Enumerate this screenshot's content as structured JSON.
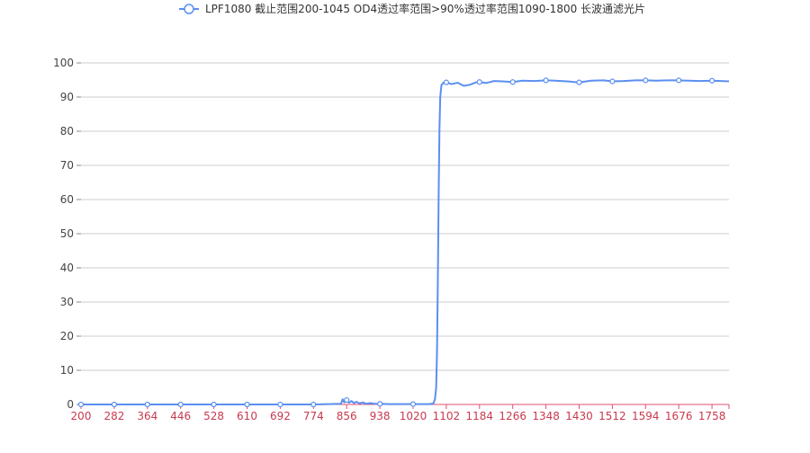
{
  "chart_data": {
    "type": "line",
    "legend": {
      "label": "LPF1080 截止范围200-1045 OD4透过率范围>90%透过率范围1090-1800 长波通滤光片",
      "position": "top-center"
    },
    "xlabel": "",
    "ylabel": "",
    "xlim": [
      200,
      1800
    ],
    "ylim": [
      0,
      100
    ],
    "grid": true,
    "x_ticks": [
      "200",
      "282",
      "364",
      "446",
      "528",
      "610",
      "692",
      "774",
      "856",
      "938",
      "1020",
      "1102",
      "1184",
      "1266",
      "1348",
      "1430",
      "1512",
      "1594",
      "1676",
      "1758"
    ],
    "y_ticks": [
      "0",
      "10",
      "20",
      "30",
      "40",
      "50",
      "60",
      "70",
      "80",
      "90",
      "100"
    ],
    "colors": {
      "line": "#5b8ff0",
      "x_tick_labels": "#c8394f",
      "x_axis": "#e05070",
      "grid": "#cccccc",
      "y_tick_labels": "#444444"
    },
    "series": [
      {
        "name": "LPF1080 截止范围200-1045 OD4透过率范围>90%透过率范围1090-1800 长波通滤光片",
        "points": [
          [
            200,
            0
          ],
          [
            282,
            0
          ],
          [
            364,
            0
          ],
          [
            446,
            0
          ],
          [
            528,
            0
          ],
          [
            610,
            0
          ],
          [
            692,
            0
          ],
          [
            774,
            0
          ],
          [
            810,
            0.1
          ],
          [
            842,
            0.2
          ],
          [
            846,
            1.5
          ],
          [
            850,
            0.6
          ],
          [
            856,
            1.3
          ],
          [
            862,
            0.5
          ],
          [
            868,
            1.0
          ],
          [
            874,
            0.4
          ],
          [
            880,
            0.8
          ],
          [
            888,
            0.3
          ],
          [
            896,
            0.6
          ],
          [
            904,
            0.2
          ],
          [
            915,
            0.4
          ],
          [
            925,
            0.2
          ],
          [
            938,
            0.2
          ],
          [
            960,
            0.1
          ],
          [
            1020,
            0.1
          ],
          [
            1060,
            0.1
          ],
          [
            1070,
            0.3
          ],
          [
            1074,
            1.5
          ],
          [
            1077,
            5
          ],
          [
            1079,
            15
          ],
          [
            1081,
            35
          ],
          [
            1083,
            60
          ],
          [
            1085,
            80
          ],
          [
            1087,
            90
          ],
          [
            1090,
            93.5
          ],
          [
            1095,
            94.2
          ],
          [
            1102,
            94.3
          ],
          [
            1115,
            93.8
          ],
          [
            1130,
            94.2
          ],
          [
            1145,
            93.3
          ],
          [
            1160,
            93.6
          ],
          [
            1175,
            94.3
          ],
          [
            1184,
            94.4
          ],
          [
            1200,
            94.1
          ],
          [
            1220,
            94.7
          ],
          [
            1240,
            94.6
          ],
          [
            1266,
            94.4
          ],
          [
            1290,
            94.8
          ],
          [
            1320,
            94.7
          ],
          [
            1348,
            94.9
          ],
          [
            1370,
            94.8
          ],
          [
            1400,
            94.6
          ],
          [
            1430,
            94.3
          ],
          [
            1460,
            94.8
          ],
          [
            1490,
            94.9
          ],
          [
            1512,
            94.6
          ],
          [
            1540,
            94.7
          ],
          [
            1570,
            94.9
          ],
          [
            1594,
            94.9
          ],
          [
            1620,
            94.8
          ],
          [
            1650,
            94.9
          ],
          [
            1676,
            94.9
          ],
          [
            1700,
            94.8
          ],
          [
            1730,
            94.7
          ],
          [
            1758,
            94.8
          ],
          [
            1780,
            94.7
          ],
          [
            1800,
            94.6
          ]
        ],
        "markers": [
          [
            200,
            0
          ],
          [
            282,
            0
          ],
          [
            364,
            0
          ],
          [
            446,
            0
          ],
          [
            528,
            0
          ],
          [
            610,
            0
          ],
          [
            692,
            0
          ],
          [
            774,
            0
          ],
          [
            856,
            1.3
          ],
          [
            938,
            0.2
          ],
          [
            1020,
            0.1
          ],
          [
            1102,
            94.3
          ],
          [
            1184,
            94.4
          ],
          [
            1266,
            94.4
          ],
          [
            1348,
            94.9
          ],
          [
            1430,
            94.3
          ],
          [
            1512,
            94.6
          ],
          [
            1594,
            94.9
          ],
          [
            1676,
            94.9
          ],
          [
            1758,
            94.8
          ]
        ]
      }
    ]
  }
}
